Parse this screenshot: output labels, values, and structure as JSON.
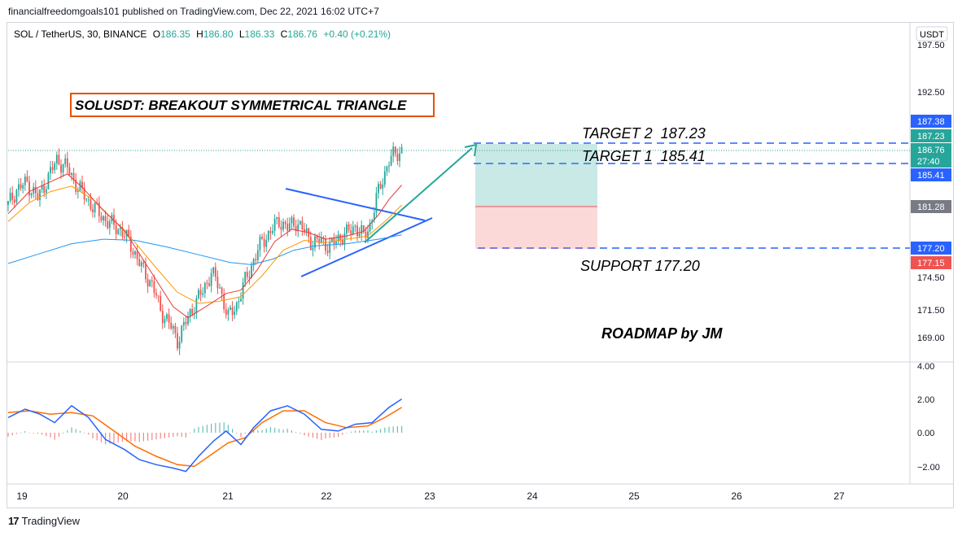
{
  "publish_line": "financialfreedomgoals101 published on TradingView.com, Dec 22, 2021 16:02 UTC+7",
  "footer_brand": "TradingView",
  "legend": {
    "symbol": "SOL / TetherUS, 30, BINANCE",
    "o_label": "O",
    "o_value": "186.35",
    "h_label": "H",
    "h_value": "186.80",
    "l_label": "L",
    "l_value": "186.33",
    "c_label": "C",
    "c_value": "186.76",
    "change": "+0.40 (+0.21%)"
  },
  "currency": "USDT",
  "colors": {
    "up": "#26a69a",
    "down": "#ef5350",
    "blue": "#2962ff",
    "teal": "#26a69a",
    "grey": "#787b86",
    "orange_box": "#e65100"
  },
  "chart_data": {
    "type": "candlestick",
    "symbol": "SOL/USDT",
    "timeframe": "30",
    "price_axis_ticks": [
      "197.50",
      "192.50",
      "174.50",
      "171.50",
      "169.00"
    ],
    "price_axis_labels": [
      {
        "text": "187.38",
        "value": 187.38,
        "color": "#2962ff"
      },
      {
        "text": "187.23",
        "value": 187.23,
        "color": "#26a69a"
      },
      {
        "text": "186.76",
        "value": 186.76,
        "color": "#26a69a"
      },
      {
        "text": "27:40",
        "value": 186.3,
        "color": "#26a69a"
      },
      {
        "text": "185.41",
        "value": 185.41,
        "color": "#2962ff"
      },
      {
        "text": "181.28",
        "value": 181.28,
        "color": "#787b86"
      },
      {
        "text": "177.20",
        "value": 177.2,
        "color": "#2962ff"
      },
      {
        "text": "177.15",
        "value": 177.15,
        "color": "#ef5350"
      }
    ],
    "macd_axis_ticks": [
      "4.00",
      "2.00",
      "0.00",
      "−2.00"
    ],
    "x_ticks": [
      "19",
      "20",
      "21",
      "22",
      "23",
      "24",
      "25",
      "26",
      "27"
    ],
    "title_box": "SOLUSDT: BREAKOUT SYMMETRICAL TRIANGLE",
    "annotations": {
      "target2": "TARGET 2  187.23",
      "target1": "TARGET 1  185.41",
      "support": "SUPPORT 177.20",
      "roadmap": "ROADMAP by JM"
    },
    "levels": {
      "target2": 187.23,
      "target1": 185.41,
      "support": 177.2,
      "entry": 181.28,
      "last": 186.76
    },
    "ranges": {
      "ylim": [
        167.7,
        198.5
      ],
      "macd_ylim": [
        -3.0,
        4.5
      ]
    },
    "close_path": [
      [
        0,
        181.8
      ],
      [
        4,
        183.2
      ],
      [
        9,
        183.8
      ],
      [
        14,
        182.4
      ],
      [
        19,
        184.3
      ],
      [
        23,
        185.9
      ],
      [
        28,
        185.1
      ],
      [
        33,
        183.4
      ],
      [
        38,
        182.1
      ],
      [
        43,
        181.0
      ],
      [
        48,
        180.1
      ],
      [
        53,
        179.6
      ],
      [
        58,
        178.2
      ],
      [
        63,
        176.1
      ],
      [
        68,
        174.6
      ],
      [
        72,
        172.3
      ],
      [
        76,
        171.1
      ],
      [
        80,
        169.6
      ],
      [
        84,
        171.2
      ],
      [
        88,
        172.8
      ],
      [
        92,
        174.0
      ],
      [
        96,
        175.7
      ],
      [
        100,
        174.3
      ],
      [
        104,
        171.6
      ],
      [
        108,
        172.8
      ],
      [
        112,
        174.9
      ],
      [
        116,
        176.8
      ],
      [
        120,
        178.5
      ],
      [
        124,
        179.4
      ],
      [
        128,
        180.4
      ],
      [
        132,
        179.7
      ],
      [
        136,
        180.3
      ],
      [
        140,
        179.4
      ],
      [
        144,
        178.3
      ],
      [
        148,
        178.6
      ],
      [
        152,
        178.0
      ],
      [
        156,
        178.8
      ],
      [
        160,
        179.2
      ],
      [
        164,
        179.9
      ],
      [
        168,
        178.9
      ],
      [
        171,
        180.0
      ],
      [
        174,
        182.3
      ],
      [
        177,
        184.2
      ],
      [
        180,
        185.8
      ],
      [
        183,
        186.4
      ],
      [
        186,
        186.76
      ]
    ],
    "ema_fast_path": [
      [
        0,
        181.0
      ],
      [
        10,
        183.0
      ],
      [
        20,
        183.9
      ],
      [
        28,
        184.6
      ],
      [
        35,
        183.4
      ],
      [
        45,
        181.3
      ],
      [
        55,
        179.5
      ],
      [
        63,
        177.1
      ],
      [
        70,
        175.0
      ],
      [
        78,
        172.6
      ],
      [
        85,
        171.6
      ],
      [
        95,
        172.8
      ],
      [
        103,
        173.8
      ],
      [
        110,
        174.1
      ],
      [
        118,
        176.0
      ],
      [
        126,
        178.5
      ],
      [
        134,
        179.6
      ],
      [
        142,
        179.3
      ],
      [
        150,
        178.7
      ],
      [
        160,
        179.0
      ],
      [
        168,
        179.4
      ],
      [
        175,
        180.9
      ],
      [
        180,
        182.3
      ],
      [
        186,
        183.6
      ]
    ],
    "ema_slow_path": [
      [
        0,
        180.3
      ],
      [
        10,
        182.0
      ],
      [
        20,
        183.0
      ],
      [
        30,
        183.5
      ],
      [
        40,
        182.3
      ],
      [
        50,
        180.4
      ],
      [
        60,
        178.4
      ],
      [
        70,
        176.1
      ],
      [
        80,
        173.9
      ],
      [
        90,
        172.9
      ],
      [
        100,
        173.1
      ],
      [
        110,
        173.5
      ],
      [
        120,
        175.4
      ],
      [
        130,
        177.7
      ],
      [
        140,
        178.6
      ],
      [
        150,
        178.4
      ],
      [
        160,
        178.7
      ],
      [
        170,
        179.0
      ],
      [
        178,
        180.3
      ],
      [
        186,
        181.8
      ]
    ],
    "ma_long_path": [
      [
        0,
        176.5
      ],
      [
        15,
        177.4
      ],
      [
        30,
        178.3
      ],
      [
        45,
        178.7
      ],
      [
        60,
        178.6
      ],
      [
        75,
        178.0
      ],
      [
        90,
        177.3
      ],
      [
        105,
        176.6
      ],
      [
        115,
        176.4
      ],
      [
        125,
        176.9
      ],
      [
        135,
        177.7
      ],
      [
        145,
        178.1
      ],
      [
        160,
        178.3
      ],
      [
        175,
        178.7
      ],
      [
        186,
        179.1
      ]
    ],
    "macd_line_path": [
      [
        0,
        0.9
      ],
      [
        8,
        1.4
      ],
      [
        15,
        1.1
      ],
      [
        22,
        0.6
      ],
      [
        30,
        1.6
      ],
      [
        38,
        0.9
      ],
      [
        46,
        -0.4
      ],
      [
        55,
        -1.0
      ],
      [
        62,
        -1.6
      ],
      [
        70,
        -1.9
      ],
      [
        78,
        -2.1
      ],
      [
        84,
        -2.3
      ],
      [
        90,
        -1.4
      ],
      [
        97,
        -0.5
      ],
      [
        103,
        0.1
      ],
      [
        110,
        -0.7
      ],
      [
        116,
        0.3
      ],
      [
        124,
        1.3
      ],
      [
        132,
        1.6
      ],
      [
        140,
        1.1
      ],
      [
        148,
        0.2
      ],
      [
        156,
        0.1
      ],
      [
        164,
        0.5
      ],
      [
        172,
        0.6
      ],
      [
        180,
        1.5
      ],
      [
        186,
        2.0
      ]
    ],
    "macd_signal_path": [
      [
        0,
        1.2
      ],
      [
        10,
        1.3
      ],
      [
        20,
        1.1
      ],
      [
        30,
        1.2
      ],
      [
        40,
        1.0
      ],
      [
        50,
        0.1
      ],
      [
        60,
        -0.8
      ],
      [
        70,
        -1.4
      ],
      [
        80,
        -1.9
      ],
      [
        88,
        -2.0
      ],
      [
        96,
        -1.3
      ],
      [
        104,
        -0.6
      ],
      [
        112,
        -0.3
      ],
      [
        120,
        0.6
      ],
      [
        130,
        1.3
      ],
      [
        140,
        1.3
      ],
      [
        150,
        0.6
      ],
      [
        160,
        0.3
      ],
      [
        170,
        0.4
      ],
      [
        178,
        0.9
      ],
      [
        186,
        1.5
      ]
    ]
  }
}
